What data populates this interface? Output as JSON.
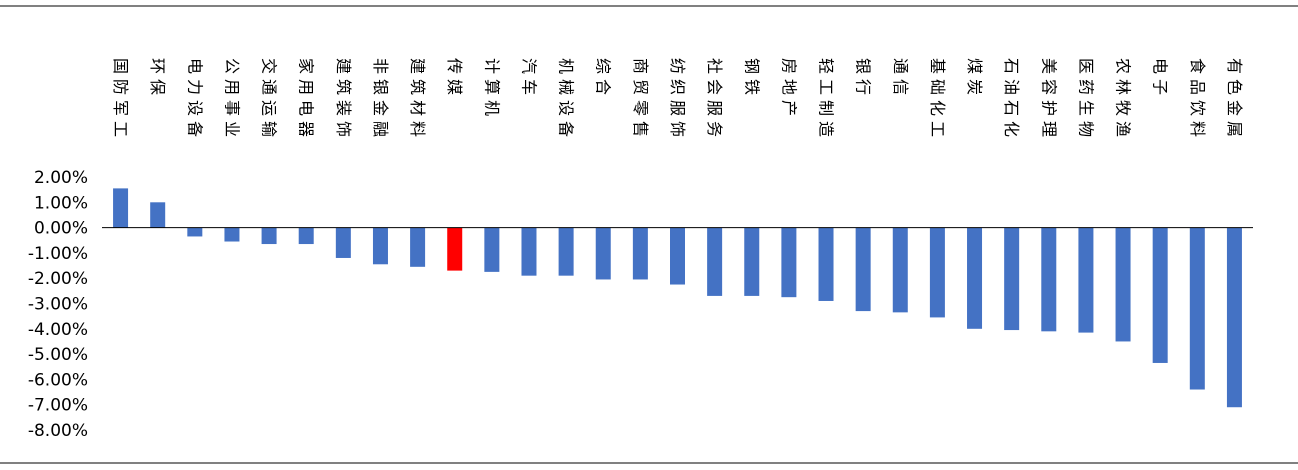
{
  "chart_data": {
    "type": "bar",
    "title": "",
    "xlabel": "",
    "ylabel": "",
    "ylim": [
      -8,
      2
    ],
    "ytick_values": [
      2,
      1,
      0,
      -1,
      -2,
      -3,
      -4,
      -5,
      -6,
      -7,
      -8
    ],
    "ytick_labels": [
      "2.00%",
      "1.00%",
      "0.00%",
      "-1.00%",
      "-2.00%",
      "-3.00%",
      "-4.00%",
      "-5.00%",
      "-6.00%",
      "-7.00%",
      "-8.00%"
    ],
    "grid": false,
    "legend": "none",
    "bar_color": "#4472c4",
    "highlight_color": "#ff0000",
    "highlight_category": "传媒",
    "categories": [
      "国防军工",
      "环保",
      "电力设备",
      "公用事业",
      "交通运输",
      "家用电器",
      "建筑装饰",
      "非银金融",
      "建筑材料",
      "传媒",
      "计算机",
      "汽车",
      "机械设备",
      "综合",
      "商贸零售",
      "纺织服饰",
      "社会服务",
      "钢铁",
      "房地产",
      "轻工制造",
      "银行",
      "通信",
      "基础化工",
      "煤炭",
      "石油石化",
      "美容护理",
      "医药生物",
      "农林牧渔",
      "电子",
      "食品饮料",
      "有色金属"
    ],
    "values": [
      1.55,
      1.0,
      -0.35,
      -0.55,
      -0.65,
      -0.65,
      -1.2,
      -1.45,
      -1.55,
      -1.7,
      -1.75,
      -1.9,
      -1.9,
      -2.05,
      -2.05,
      -2.25,
      -2.7,
      -2.7,
      -2.75,
      -2.9,
      -3.3,
      -3.35,
      -3.55,
      -4.0,
      -4.05,
      -4.1,
      -4.15,
      -4.5,
      -5.35,
      -6.4,
      -7.1
    ]
  }
}
